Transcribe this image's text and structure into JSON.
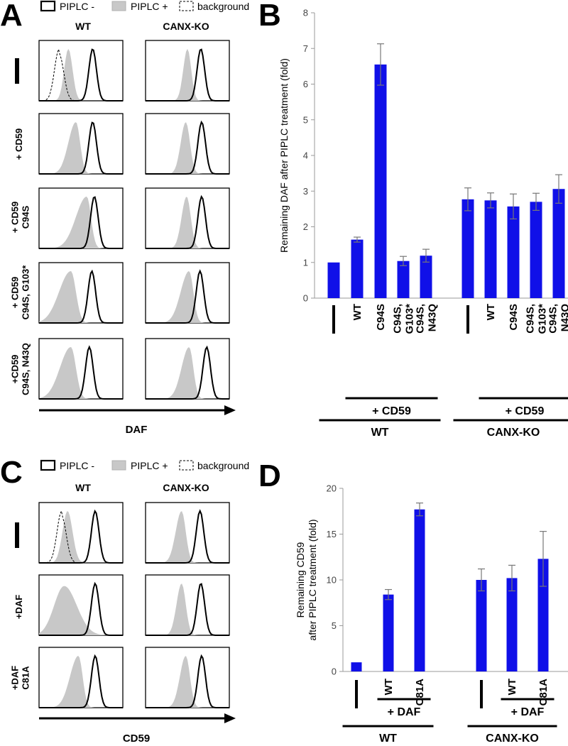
{
  "colors": {
    "bar": "#1010e8",
    "filled_hist": "#c8c8c8",
    "outline": "#000000",
    "error": "#777777"
  },
  "panel_A": {
    "label": "A",
    "legend": [
      "PIPLC -",
      "PIPLC +",
      "background"
    ],
    "columns": [
      "WT",
      "CANX-KO"
    ],
    "rows": [
      "+ CD59",
      "+ CD59 C94S",
      "+ CD59 C94S, G103*",
      "+CD59 C94S, N43Q"
    ],
    "row_lines": [
      [
        "+ CD59"
      ],
      [
        "+ CD59",
        "C94S"
      ],
      [
        "+ CD59",
        "C94S, G103*"
      ],
      [
        "+CD59",
        "C94S, N43Q"
      ]
    ],
    "axis_label": "DAF"
  },
  "panel_C": {
    "label": "C",
    "legend": [
      "PIPLC -",
      "PIPLC +",
      "background"
    ],
    "columns": [
      "WT",
      "CANX-KO"
    ],
    "rows": [
      "+DAF",
      "+DAF C81A"
    ],
    "row_lines": [
      [
        "+DAF"
      ],
      [
        "+DAF",
        "C81A"
      ]
    ],
    "axis_label": "CD59"
  },
  "chart_data": [
    {
      "panel": "B",
      "type": "bar",
      "ylabel": "Remaining  DAF after PIPLC treatment (fold)",
      "ylim": [
        0,
        8
      ],
      "yticks": [
        0,
        1,
        2,
        3,
        4,
        5,
        6,
        7,
        8
      ],
      "categories": [
        "—",
        "WT",
        "C94S",
        "C94S, G103*",
        "C94S, N43Q",
        "—",
        "WT",
        "C94S",
        "C94S, G103*",
        "C94S, N43Q"
      ],
      "values": [
        1.0,
        1.64,
        6.55,
        1.04,
        1.19,
        2.77,
        2.74,
        2.57,
        2.7,
        3.06
      ],
      "errors": [
        0.0,
        0.07,
        0.58,
        0.13,
        0.18,
        0.32,
        0.21,
        0.35,
        0.24,
        0.4
      ],
      "groups": [
        {
          "label": "WT",
          "indices": [
            0,
            1,
            2,
            3,
            4
          ],
          "sublabel": "+ CD59",
          "sub_indices": [
            1,
            2,
            3,
            4
          ]
        },
        {
          "label": "CANX-KO",
          "indices": [
            5,
            6,
            7,
            8,
            9
          ],
          "sublabel": "+ CD59",
          "sub_indices": [
            6,
            7,
            8,
            9
          ]
        }
      ]
    },
    {
      "panel": "D",
      "type": "bar",
      "ylabel_lines": [
        "Remaining CD59",
        "after PIPLC treatment (fold)"
      ],
      "ylim": [
        0,
        20
      ],
      "yticks": [
        0,
        5,
        10,
        15,
        20
      ],
      "categories": [
        "—",
        "WT",
        "C81A",
        "—",
        "WT",
        "C81A"
      ],
      "values": [
        1.0,
        8.4,
        17.7,
        10.0,
        10.2,
        12.3
      ],
      "errors": [
        0.0,
        0.55,
        0.7,
        1.2,
        1.4,
        3.0
      ],
      "groups": [
        {
          "label": "WT",
          "indices": [
            0,
            1,
            2
          ],
          "sublabel": "+ DAF",
          "sub_indices": [
            1,
            2
          ]
        },
        {
          "label": "CANX-KO",
          "indices": [
            3,
            4,
            5
          ],
          "sublabel": "+ DAF",
          "sub_indices": [
            4,
            5
          ]
        }
      ]
    }
  ]
}
